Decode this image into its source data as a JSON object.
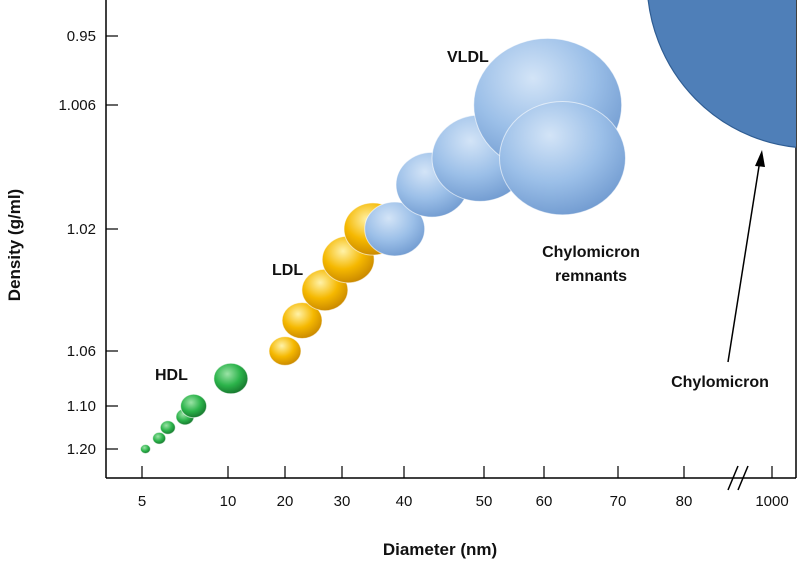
{
  "chart_data": {
    "type": "scatter",
    "xlabel": "Diameter (nm)",
    "ylabel": "Density (g/ml)",
    "x_ticks": [
      "5",
      "10",
      "20",
      "30",
      "40",
      "50",
      "60",
      "70",
      "80",
      "1000"
    ],
    "y_ticks": [
      "0.95",
      "1.006",
      "1.02",
      "1.06",
      "1.10",
      "1.20"
    ],
    "x_axis_break": "between 80 and 1000",
    "grid": false,
    "colors": {
      "HDL": "#2bb34a",
      "LDL": "#f5b800",
      "VLDL": "#8fb4e3",
      "Chylomicron remnants": "#8fb4e3",
      "Chylomicron": "#4f7fb8"
    },
    "groups": [
      {
        "label": "HDL",
        "points": [
          {
            "x": 5.2,
            "y": 1.2,
            "size": 5
          },
          {
            "x": 6.0,
            "y": 1.175,
            "size": 6.5
          },
          {
            "x": 6.5,
            "y": 1.15,
            "size": 7.5
          },
          {
            "x": 7.5,
            "y": 1.125,
            "size": 9
          },
          {
            "x": 8.0,
            "y": 1.1,
            "size": 13
          },
          {
            "x": 10.5,
            "y": 1.08,
            "size": 17
          }
        ]
      },
      {
        "label": "LDL",
        "points": [
          {
            "x": 20,
            "y": 1.06,
            "size": 16
          },
          {
            "x": 23,
            "y": 1.05,
            "size": 20
          },
          {
            "x": 27,
            "y": 1.04,
            "size": 23
          },
          {
            "x": 31,
            "y": 1.03,
            "size": 26
          },
          {
            "x": 35,
            "y": 1.02,
            "size": 29
          }
        ]
      },
      {
        "label": "VLDL",
        "points": [
          {
            "x": 38.5,
            "y": 1.02,
            "size": 30
          },
          {
            "x": 43.5,
            "y": 1.015,
            "size": 36
          },
          {
            "x": 49.5,
            "y": 1.012,
            "size": 48
          },
          {
            "x": 60.5,
            "y": 1.006,
            "size": 74
          }
        ]
      },
      {
        "label": "Chylomicron remnants",
        "points": [
          {
            "x": 62.5,
            "y": 1.012,
            "size": 63
          }
        ]
      },
      {
        "label": "Chylomicron",
        "points": [
          {
            "x": 1000,
            "y": 0.95,
            "size": 300
          }
        ]
      }
    ]
  }
}
